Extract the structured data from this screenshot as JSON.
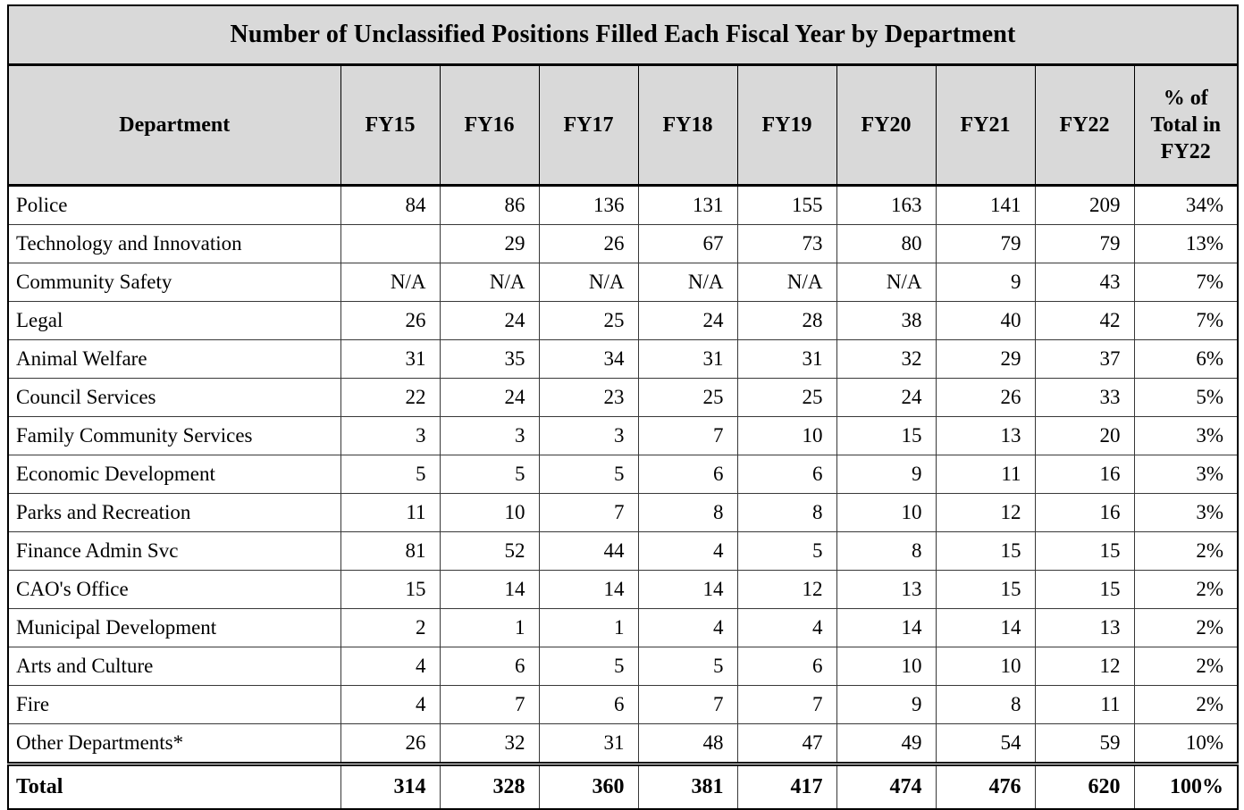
{
  "chart_data": {
    "type": "table",
    "title": "Number of Unclassified Positions Filled Each Fiscal Year by Department",
    "columns": [
      "Department",
      "FY15",
      "FY16",
      "FY17",
      "FY18",
      "FY19",
      "FY20",
      "FY21",
      "FY22",
      "% of Total in FY22"
    ],
    "rows": [
      {
        "department": "Police",
        "values": [
          "84",
          "86",
          "136",
          "131",
          "155",
          "163",
          "141",
          "209",
          "34%"
        ]
      },
      {
        "department": "Technology and Innovation",
        "values": [
          "",
          "29",
          "26",
          "67",
          "73",
          "80",
          "79",
          "79",
          "13%"
        ]
      },
      {
        "department": "Community Safety",
        "values": [
          "N/A",
          "N/A",
          "N/A",
          "N/A",
          "N/A",
          "N/A",
          "9",
          "43",
          "7%"
        ]
      },
      {
        "department": "Legal",
        "values": [
          "26",
          "24",
          "25",
          "24",
          "28",
          "38",
          "40",
          "42",
          "7%"
        ]
      },
      {
        "department": "Animal Welfare",
        "values": [
          "31",
          "35",
          "34",
          "31",
          "31",
          "32",
          "29",
          "37",
          "6%"
        ]
      },
      {
        "department": "Council Services",
        "values": [
          "22",
          "24",
          "23",
          "25",
          "25",
          "24",
          "26",
          "33",
          "5%"
        ]
      },
      {
        "department": "Family Community Services",
        "values": [
          "3",
          "3",
          "3",
          "7",
          "10",
          "15",
          "13",
          "20",
          "3%"
        ]
      },
      {
        "department": "Economic Development",
        "values": [
          "5",
          "5",
          "5",
          "6",
          "6",
          "9",
          "11",
          "16",
          "3%"
        ]
      },
      {
        "department": "Parks and Recreation",
        "values": [
          "11",
          "10",
          "7",
          "8",
          "8",
          "10",
          "12",
          "16",
          "3%"
        ]
      },
      {
        "department": "Finance Admin Svc",
        "values": [
          "81",
          "52",
          "44",
          "4",
          "5",
          "8",
          "15",
          "15",
          "2%"
        ]
      },
      {
        "department": "CAO's Office",
        "values": [
          "15",
          "14",
          "14",
          "14",
          "12",
          "13",
          "15",
          "15",
          "2%"
        ]
      },
      {
        "department": "Municipal Development",
        "values": [
          "2",
          "1",
          "1",
          "4",
          "4",
          "14",
          "14",
          "13",
          "2%"
        ]
      },
      {
        "department": "Arts and Culture",
        "values": [
          "4",
          "6",
          "5",
          "5",
          "6",
          "10",
          "10",
          "12",
          "2%"
        ]
      },
      {
        "department": "Fire",
        "values": [
          "4",
          "7",
          "6",
          "7",
          "7",
          "9",
          "8",
          "11",
          "2%"
        ]
      },
      {
        "department": "Other Departments*",
        "values": [
          "26",
          "32",
          "31",
          "48",
          "47",
          "49",
          "54",
          "59",
          "10%"
        ]
      }
    ],
    "total": {
      "department": "Total",
      "values": [
        "314",
        "328",
        "360",
        "381",
        "417",
        "474",
        "476",
        "620",
        "100%"
      ]
    },
    "layout_hints": {
      "header_background": "#d9d9d9",
      "grid_color": "#000000",
      "total_row_separator": "double-line",
      "number_alignment": "right"
    }
  }
}
